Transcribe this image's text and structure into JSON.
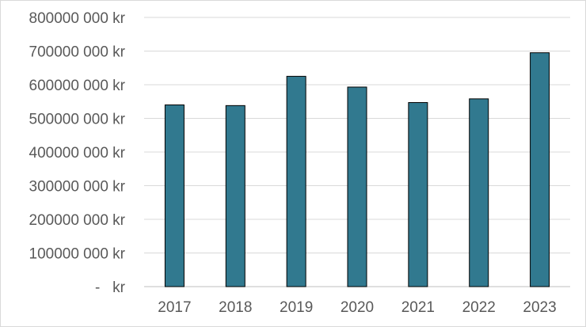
{
  "chart_data": {
    "type": "bar",
    "title": "",
    "xlabel": "",
    "ylabel": "",
    "categories": [
      "2017",
      "2018",
      "2019",
      "2020",
      "2021",
      "2022",
      "2023"
    ],
    "values": [
      540000000,
      538000000,
      625000000,
      593000000,
      547000000,
      558000000,
      695000000
    ],
    "ylim": [
      0,
      800000000
    ],
    "y_ticks": [
      {
        "value": 0,
        "label": "-   kr"
      },
      {
        "value": 100000000,
        "label": "100000 000 kr"
      },
      {
        "value": 200000000,
        "label": "200000 000 kr"
      },
      {
        "value": 300000000,
        "label": "300000 000 kr"
      },
      {
        "value": 400000000,
        "label": "400000 000 kr"
      },
      {
        "value": 500000000,
        "label": "500000 000 kr"
      },
      {
        "value": 600000000,
        "label": "600000 000 kr"
      },
      {
        "value": 700000000,
        "label": "700000 000 kr"
      },
      {
        "value": 800000000,
        "label": "800000 000 kr"
      }
    ],
    "grid": true,
    "legend": "none",
    "colors": {
      "bar_fill": "#31798F",
      "bar_stroke": "#000000",
      "gridline": "#d9d9d9",
      "axis_line": "#bfbfbf",
      "text": "#595959"
    }
  }
}
